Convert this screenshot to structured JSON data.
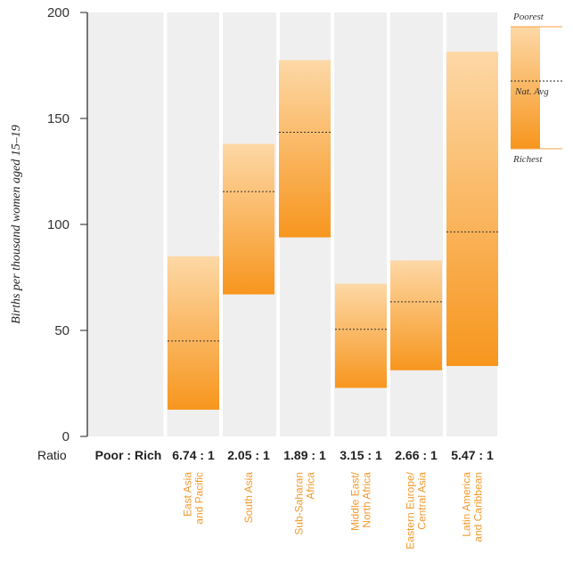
{
  "chart_data": {
    "type": "floating-bar",
    "ylabel": "Births per thousand women aged 15–19",
    "ylim": [
      0,
      200
    ],
    "yticks": [
      "0",
      "50",
      "100",
      "150",
      "200"
    ],
    "ratio_label": "Ratio",
    "ratio_header": "Poor : Rich",
    "categories": [
      {
        "label_lines": [
          "East Asia",
          "and Pacific"
        ],
        "poorest": 85,
        "richest": 12.6,
        "nat_avg": 45,
        "ratio": "6.74 : 1"
      },
      {
        "label_lines": [
          "South Asia"
        ],
        "poorest": 138,
        "richest": 67,
        "nat_avg": 115.5,
        "ratio": "2.05 : 1"
      },
      {
        "label_lines": [
          "Sub-Saharan",
          "Africa"
        ],
        "poorest": 177.5,
        "richest": 93.9,
        "nat_avg": 143.5,
        "ratio": "1.89 : 1"
      },
      {
        "label_lines": [
          "Middle East/",
          "North Africa"
        ],
        "poorest": 72,
        "richest": 22.9,
        "nat_avg": 50.5,
        "ratio": "3.15 : 1"
      },
      {
        "label_lines": [
          "Eastern Europe/",
          "Central Asia"
        ],
        "poorest": 83,
        "richest": 31.2,
        "nat_avg": 63.5,
        "ratio": "2.66 : 1"
      },
      {
        "label_lines": [
          "Latin America",
          "and Caribbean"
        ],
        "poorest": 181.5,
        "richest": 33.2,
        "nat_avg": 96.5,
        "ratio": "5.47 : 1"
      }
    ],
    "legend": {
      "top": "Poorest",
      "middle": "Nat. Avg",
      "bottom": "Richest"
    },
    "colors": {
      "light": "#fdd8a6",
      "dark": "#f7961e",
      "panel": "#efefef",
      "category_text": "#f29a2e"
    }
  }
}
